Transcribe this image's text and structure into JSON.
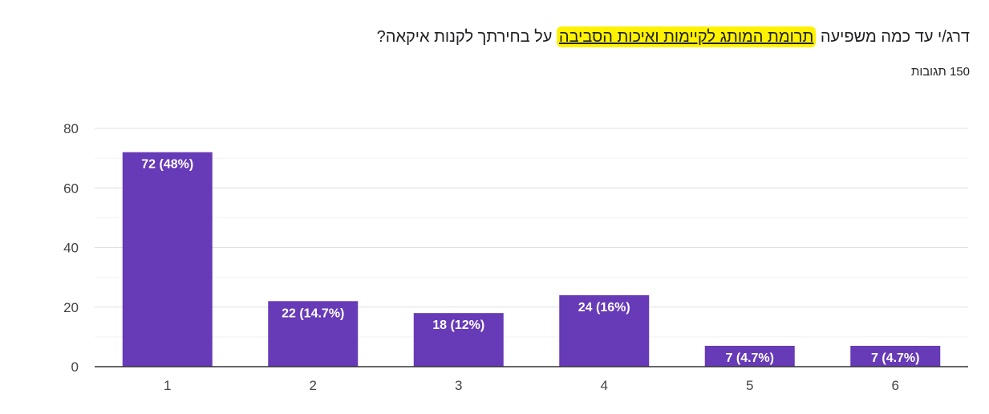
{
  "question": {
    "prefix": "דרג/י עד כמה משפיעה ",
    "highlight": "תרומת המותג לקיימות ואיכות הסביבה",
    "suffix": " על בחירתך לקנות איקאה?",
    "highlight_color": "#fef200"
  },
  "responses_label": "150 תגובות",
  "colors": {
    "bar": "#673ab7",
    "grid": "#e6e6e6",
    "axis": "#333333",
    "tick_text": "#444444",
    "label_text": "#ffffff"
  },
  "chart_data": {
    "type": "bar",
    "title": "",
    "xlabel": "",
    "ylabel": "",
    "categories": [
      "1",
      "2",
      "3",
      "4",
      "5",
      "6"
    ],
    "values": [
      72,
      22,
      18,
      24,
      7,
      7
    ],
    "data_labels": [
      "72 (48%)",
      "22 (14.7%)",
      "18 (12%)",
      "24 (16%)",
      "7 (4.7%)",
      "7 (4.7%)"
    ],
    "ylim": [
      0,
      80
    ],
    "yticks": [
      0,
      20,
      40,
      60,
      80
    ],
    "grid": true,
    "legend": "none"
  }
}
